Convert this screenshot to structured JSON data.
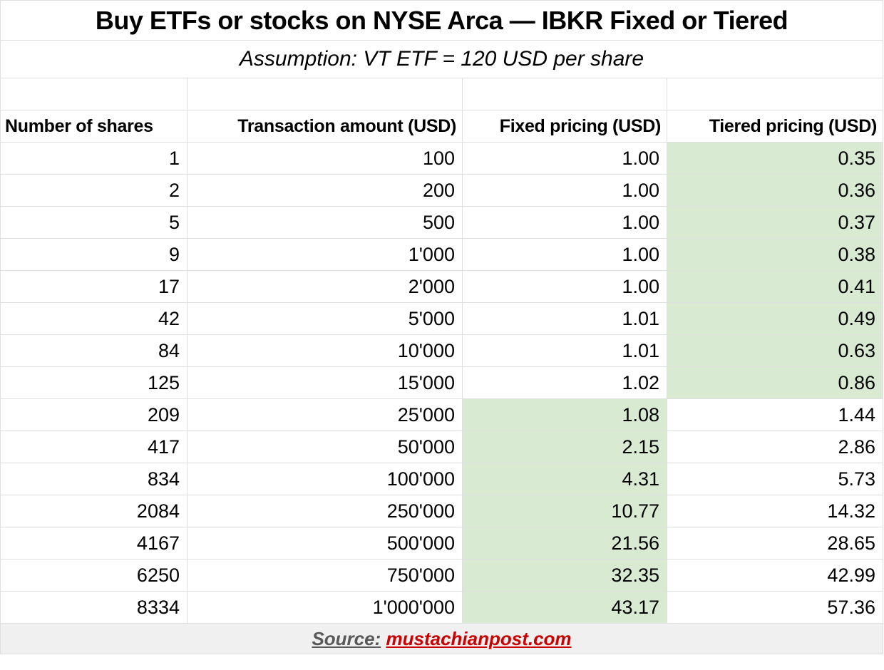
{
  "title": "Buy ETFs or stocks on NYSE Arca — IBKR Fixed or Tiered",
  "subtitle": "Assumption: VT ETF = 120 USD per share",
  "table": {
    "columns": [
      "Number of shares",
      "Transaction amount (USD)",
      "Fixed pricing (USD)",
      "Tiered pricing (USD)"
    ],
    "rows": [
      {
        "shares": "1",
        "amount": "100",
        "fixed": "1.00",
        "tiered": "0.35",
        "highlight": "tiered"
      },
      {
        "shares": "2",
        "amount": "200",
        "fixed": "1.00",
        "tiered": "0.36",
        "highlight": "tiered"
      },
      {
        "shares": "5",
        "amount": "500",
        "fixed": "1.00",
        "tiered": "0.37",
        "highlight": "tiered"
      },
      {
        "shares": "9",
        "amount": "1'000",
        "fixed": "1.00",
        "tiered": "0.38",
        "highlight": "tiered"
      },
      {
        "shares": "17",
        "amount": "2'000",
        "fixed": "1.00",
        "tiered": "0.41",
        "highlight": "tiered"
      },
      {
        "shares": "42",
        "amount": "5'000",
        "fixed": "1.01",
        "tiered": "0.49",
        "highlight": "tiered"
      },
      {
        "shares": "84",
        "amount": "10'000",
        "fixed": "1.01",
        "tiered": "0.63",
        "highlight": "tiered"
      },
      {
        "shares": "125",
        "amount": "15'000",
        "fixed": "1.02",
        "tiered": "0.86",
        "highlight": "tiered"
      },
      {
        "shares": "209",
        "amount": "25'000",
        "fixed": "1.08",
        "tiered": "1.44",
        "highlight": "fixed"
      },
      {
        "shares": "417",
        "amount": "50'000",
        "fixed": "2.15",
        "tiered": "2.86",
        "highlight": "fixed"
      },
      {
        "shares": "834",
        "amount": "100'000",
        "fixed": "4.31",
        "tiered": "5.73",
        "highlight": "fixed"
      },
      {
        "shares": "2084",
        "amount": "250'000",
        "fixed": "10.77",
        "tiered": "14.32",
        "highlight": "fixed"
      },
      {
        "shares": "4167",
        "amount": "500'000",
        "fixed": "21.56",
        "tiered": "28.65",
        "highlight": "fixed"
      },
      {
        "shares": "6250",
        "amount": "750'000",
        "fixed": "32.35",
        "tiered": "42.99",
        "highlight": "fixed"
      },
      {
        "shares": "8334",
        "amount": "1'000'000",
        "fixed": "43.17",
        "tiered": "57.36",
        "highlight": "fixed"
      }
    ]
  },
  "footer": {
    "source_label": "Source:",
    "source_link": "mustachianpost.com"
  },
  "colors": {
    "highlight_green": "#d9ead3",
    "grid_line": "#dfdfdf",
    "footer_bg": "#f0f0f0",
    "source_label_gray": "#595959",
    "source_link_red": "#cc0000"
  },
  "chart_data": {
    "type": "table",
    "title": "Buy ETFs or stocks on NYSE Arca — IBKR Fixed or Tiered",
    "subtitle": "Assumption: VT ETF = 120 USD per share",
    "columns": [
      "Number of shares",
      "Transaction amount (USD)",
      "Fixed pricing (USD)",
      "Tiered pricing (USD)"
    ],
    "rows": [
      [
        1,
        100,
        1.0,
        0.35
      ],
      [
        2,
        200,
        1.0,
        0.36
      ],
      [
        5,
        500,
        1.0,
        0.37
      ],
      [
        9,
        1000,
        1.0,
        0.38
      ],
      [
        17,
        2000,
        1.0,
        0.41
      ],
      [
        42,
        5000,
        1.01,
        0.49
      ],
      [
        84,
        10000,
        1.01,
        0.63
      ],
      [
        125,
        15000,
        1.02,
        0.86
      ],
      [
        209,
        25000,
        1.08,
        1.44
      ],
      [
        417,
        50000,
        2.15,
        2.86
      ],
      [
        834,
        100000,
        4.31,
        5.73
      ],
      [
        2084,
        250000,
        10.77,
        14.32
      ],
      [
        4167,
        500000,
        21.56,
        28.65
      ],
      [
        6250,
        750000,
        32.35,
        42.99
      ],
      [
        8334,
        1000000,
        43.17,
        57.36
      ]
    ],
    "cheaper_option_highlighted_green": {
      "tiered_rows_1_to_8": true,
      "fixed_rows_9_to_15": true
    },
    "annotations": "Source: mustachianpost.com"
  }
}
